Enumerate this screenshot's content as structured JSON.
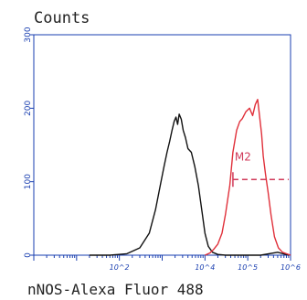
{
  "chart_data": {
    "type": "line",
    "title": "",
    "ylabel": "Counts",
    "xlabel": "nNOS-Alexa Fluor 488",
    "x_scale": "log",
    "xlim": [
      1,
      1000000
    ],
    "ylim": [
      0,
      300
    ],
    "y_ticks": [
      "0",
      "100",
      "200",
      "300"
    ],
    "x_ticks": [
      "10^2",
      "10^4",
      "10^5",
      "10^6"
    ],
    "gate": {
      "label": "M2",
      "x_start": 45000,
      "x_end": 1000000,
      "y": 103,
      "color": "#d03a5a"
    },
    "series": [
      {
        "name": "",
        "color": "#111111",
        "x": [
          20,
          60,
          150,
          300,
          500,
          700,
          900,
          1100,
          1300,
          1500,
          1700,
          1900,
          2100,
          2300,
          2500,
          2800,
          3100,
          3500,
          4000,
          4800,
          5800,
          7000,
          8500,
          10000,
          12000,
          15000,
          20000,
          30000,
          60000,
          200000,
          500000,
          900000
        ],
        "y": [
          0,
          0,
          2,
          10,
          30,
          62,
          95,
          120,
          140,
          155,
          170,
          182,
          188,
          178,
          192,
          185,
          170,
          160,
          145,
          140,
          120,
          95,
          60,
          30,
          12,
          4,
          1,
          0,
          0,
          0,
          4,
          0
        ]
      },
      {
        "name": "",
        "color": "#e0303a",
        "x": [
          10000,
          13000,
          16000,
          20000,
          25000,
          30000,
          38000,
          45000,
          55000,
          65000,
          75000,
          90000,
          110000,
          130000,
          150000,
          170000,
          190000,
          210000,
          230000,
          260000,
          300000,
          350000,
          420000,
          520000,
          650000,
          800000,
          1000000
        ],
        "y": [
          0,
          3,
          8,
          15,
          30,
          55,
          95,
          140,
          170,
          182,
          186,
          195,
          200,
          190,
          205,
          212,
          188,
          165,
          135,
          110,
          85,
          55,
          25,
          10,
          4,
          2,
          0
        ]
      }
    ]
  }
}
